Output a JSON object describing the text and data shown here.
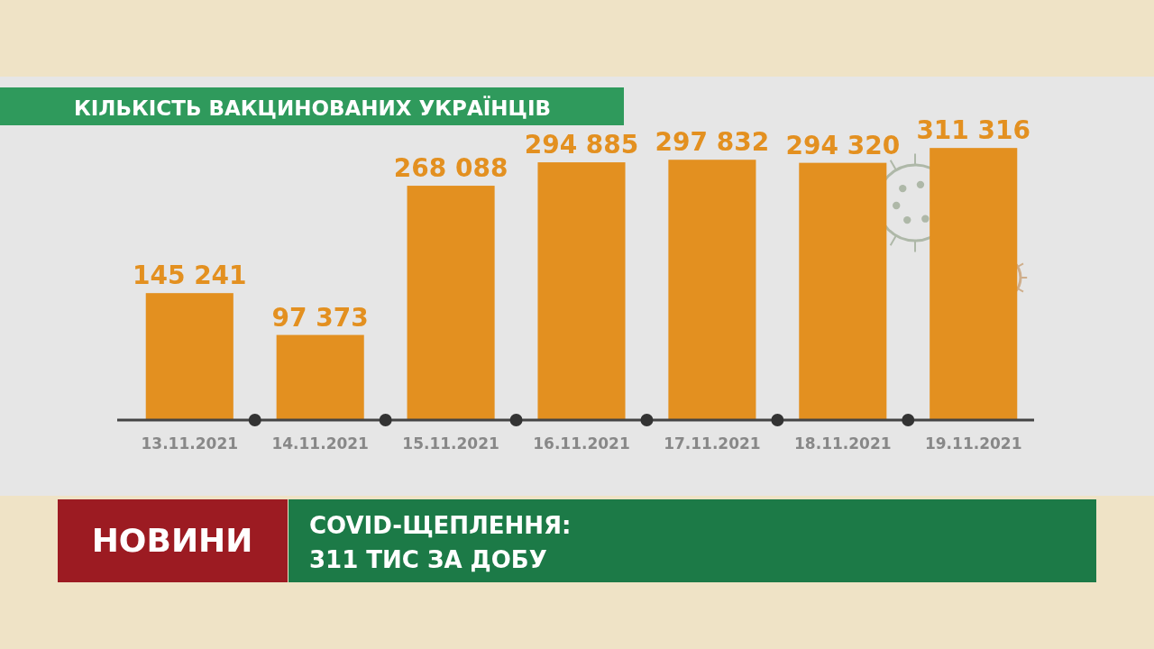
{
  "chart_data": {
    "type": "bar",
    "title": "КІЛЬКІСТЬ ВАКЦИНОВАНИХ УКРАЇНЦІВ",
    "categories": [
      "13.11.2021",
      "14.11.2021",
      "15.11.2021",
      "16.11.2021",
      "17.11.2021",
      "18.11.2021",
      "19.11.2021"
    ],
    "series": [
      {
        "color": "#e39020",
        "values": [
          145241,
          97373,
          268088,
          294885,
          297832,
          294320,
          311316
        ]
      }
    ],
    "data_labels": true,
    "annotations": [
      "НОВИНИ",
      "COVID-ЩЕПЛЕННЯ:",
      "311 ТИС ЗА ДОБУ"
    ]
  }
}
